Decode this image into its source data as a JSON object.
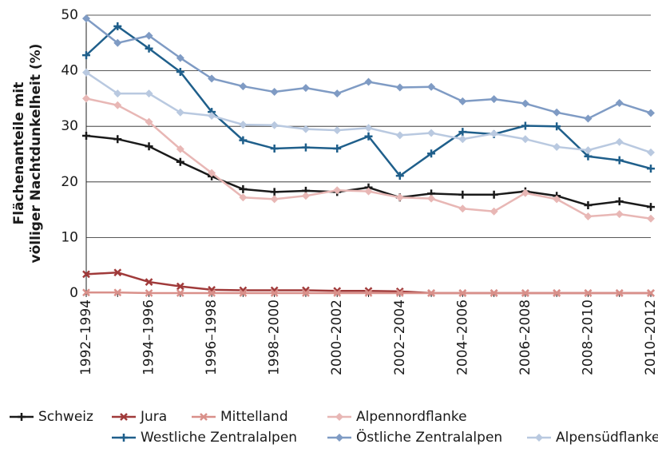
{
  "chart_data": {
    "type": "line",
    "ylabel": [
      "Flächenanteile mit",
      "völliger Nachtdunkelheit (%)"
    ],
    "categories": [
      "1992–1994",
      null,
      "1994–1996",
      null,
      "1996–1998",
      null,
      "1998–2000",
      null,
      "2000–2002",
      null,
      "2002–2004",
      null,
      "2004–2006",
      null,
      "2006–2008",
      null,
      "2008–2010",
      null,
      "2010–2012"
    ],
    "series": [
      {
        "name": "Schweiz",
        "color": "#1a1a1a",
        "marker": "plus",
        "values": [
          28.3,
          27.7,
          26.4,
          23.6,
          21.0,
          18.7,
          18.2,
          18.4,
          18.2,
          19.0,
          17.2,
          17.9,
          17.7,
          17.7,
          18.3,
          17.5,
          15.8,
          16.5,
          15.5
        ]
      },
      {
        "name": "Jura",
        "color": "#a03a3a",
        "marker": "x",
        "values": [
          3.4,
          3.7,
          2.0,
          1.2,
          0.6,
          0.5,
          0.5,
          0.5,
          0.4,
          0.4,
          0.3,
          0,
          0,
          0,
          0,
          0,
          0,
          0,
          0
        ]
      },
      {
        "name": "Mittelland",
        "color": "#d9908a",
        "marker": "x",
        "values": [
          0.1,
          0.1,
          0,
          0,
          0,
          0,
          0,
          0,
          0,
          0,
          0,
          0,
          0,
          0,
          0,
          0,
          0,
          0,
          0
        ]
      },
      {
        "name": "Alpennordflanke",
        "color": "#e8b7b5",
        "marker": "diamond",
        "values": [
          35.0,
          33.8,
          30.8,
          25.9,
          21.6,
          17.2,
          16.9,
          17.5,
          18.5,
          18.3,
          17.2,
          17.0,
          15.2,
          14.7,
          18.0,
          16.9,
          13.8,
          14.2,
          13.4
        ]
      },
      {
        "name": "Westliche Zentralalpen",
        "color": "#1f5f8b",
        "marker": "plus",
        "values": [
          42.8,
          48.0,
          44.0,
          39.8,
          32.6,
          27.5,
          26.0,
          26.2,
          26.0,
          28.2,
          21.1,
          25.1,
          29.0,
          28.6,
          30.1,
          30.0,
          24.6,
          23.9,
          22.4
        ]
      },
      {
        "name": "Östliche Zentralalpen",
        "color": "#7f9bc4",
        "marker": "diamond",
        "values": [
          49.4,
          45.0,
          46.3,
          42.3,
          38.6,
          37.2,
          36.2,
          36.9,
          35.9,
          38.0,
          37.0,
          37.1,
          34.5,
          34.9,
          34.1,
          32.5,
          31.4,
          34.2,
          32.4
        ]
      },
      {
        "name": "Alpensüdflanke",
        "color": "#b9c9e0",
        "marker": "diamond",
        "values": [
          39.7,
          35.9,
          35.9,
          32.5,
          31.9,
          30.3,
          30.2,
          29.5,
          29.3,
          29.7,
          28.4,
          28.8,
          27.7,
          28.7,
          27.7,
          26.3,
          25.7,
          27.2,
          25.3
        ]
      }
    ],
    "ylim": [
      0,
      50
    ],
    "yticks": [
      0,
      10,
      20,
      30,
      40,
      50
    ],
    "grid": true
  }
}
